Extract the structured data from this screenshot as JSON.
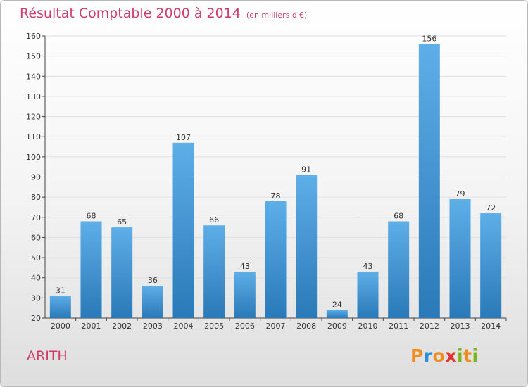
{
  "title": "Résultat Comptable 2000 à 2014",
  "subtitle": "(en milliers d'€)",
  "commune": "ARITH",
  "logo": {
    "letters": [
      {
        "char": "P",
        "color": "#f08b1c"
      },
      {
        "char": "r",
        "color": "#2f8fd6"
      },
      {
        "char": "o",
        "color": "#f08b1c"
      },
      {
        "char": "x",
        "color": "#e3332c"
      },
      {
        "char": "i",
        "color": "#7ab51d"
      },
      {
        "char": "t",
        "color": "#f08b1c"
      },
      {
        "char": "i",
        "color": "#7ab51d"
      }
    ]
  },
  "colors": {
    "title": "#cf3c6a",
    "bar_top": "#5eaee8",
    "bar_bottom": "#2a79b8",
    "grid": "#e0e0e0",
    "axis": "#444444",
    "text": "#333333"
  },
  "chart_data": {
    "type": "bar",
    "categories": [
      "2000",
      "2001",
      "2002",
      "2003",
      "2004",
      "2005",
      "2006",
      "2007",
      "2008",
      "2009",
      "2010",
      "2011",
      "2012",
      "2013",
      "2014"
    ],
    "values": [
      31,
      68,
      65,
      36,
      107,
      66,
      43,
      78,
      91,
      24,
      43,
      68,
      156,
      79,
      72
    ],
    "ylim": [
      20,
      160
    ],
    "yticks": [
      20,
      30,
      40,
      50,
      60,
      70,
      80,
      90,
      100,
      110,
      120,
      130,
      140,
      150,
      160
    ],
    "grid": true,
    "data_labels": true
  }
}
